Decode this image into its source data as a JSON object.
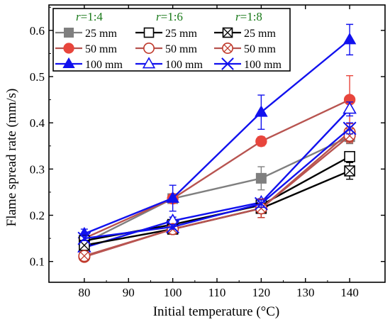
{
  "chart_data": {
    "type": "line",
    "title": "",
    "xlabel": "Initial temperature (°C)",
    "ylabel": "Flame spread rate (mm/s)",
    "xlim": [
      72,
      148
    ],
    "ylim": [
      0.055,
      0.655
    ],
    "xticks": [
      80,
      90,
      100,
      110,
      120,
      130,
      140
    ],
    "yticks": [
      0.1,
      0.2,
      0.3,
      0.4,
      0.5,
      0.6
    ],
    "grid": false,
    "legend_position": "top-left",
    "legend_groups": [
      {
        "header_prefix": "r",
        "header_value": "=1:4",
        "color": "#1a7a1a"
      },
      {
        "header_prefix": "r",
        "header_value": "=1:6",
        "color": "#1a7a1a"
      },
      {
        "header_prefix": "r",
        "header_value": "=1:8",
        "color": "#1a7a1a"
      }
    ],
    "x": [
      80,
      100,
      120,
      140
    ],
    "series": [
      {
        "name": "25 mm",
        "group": 0,
        "marker": "square-filled",
        "color": "#7f7f7f",
        "values": [
          0.14,
          0.236,
          0.28,
          0.37
        ],
        "errors": [
          0.01,
          0.01,
          0.025,
          0.015
        ]
      },
      {
        "name": "50 mm",
        "group": 0,
        "marker": "circle-filled",
        "color": "#e8453c",
        "line_color": "#b85450",
        "values": [
          0.15,
          0.236,
          0.36,
          0.45
        ],
        "errors": [
          0.01,
          0.01,
          0.01,
          0.052
        ]
      },
      {
        "name": "100 mm",
        "group": 0,
        "marker": "triangle-filled",
        "color": "#1111ee",
        "values": [
          0.16,
          0.237,
          0.423,
          0.58
        ],
        "errors": [
          0.01,
          0.028,
          0.037,
          0.033
        ]
      },
      {
        "name": "25 mm",
        "group": 1,
        "marker": "square-open",
        "color": "#000000",
        "values": [
          0.145,
          0.18,
          0.222,
          0.327
        ],
        "errors": [
          0.005,
          0.005,
          0.008,
          0.01
        ]
      },
      {
        "name": "50 mm",
        "group": 1,
        "marker": "circle-open",
        "color": "#c0392b",
        "line_color": "#b85450",
        "values": [
          0.11,
          0.17,
          0.215,
          0.38
        ],
        "errors": [
          0.005,
          0.008,
          0.02,
          0.02
        ]
      },
      {
        "name": "100 mm",
        "group": 1,
        "marker": "triangle-open",
        "color": "#1111ee",
        "values": [
          0.13,
          0.188,
          0.228,
          0.43
        ],
        "errors": [
          0.005,
          0.008,
          0.008,
          0.015
        ]
      },
      {
        "name": "25 mm",
        "group": 2,
        "marker": "square-x",
        "color": "#000000",
        "values": [
          0.135,
          0.17,
          0.215,
          0.296
        ],
        "errors": [
          0.005,
          0.005,
          0.008,
          0.018
        ]
      },
      {
        "name": "50 mm",
        "group": 2,
        "marker": "circle-x",
        "color": "#c0392b",
        "line_color": "#b85450",
        "values": [
          0.112,
          0.17,
          0.215,
          0.372
        ],
        "errors": [
          0.005,
          0.005,
          0.02,
          0.015
        ]
      },
      {
        "name": "100 mm",
        "group": 2,
        "marker": "cross-x",
        "color": "#1111ee",
        "values": [
          0.15,
          0.175,
          0.225,
          0.388
        ],
        "errors": [
          0.005,
          0.005,
          0.008,
          0.012
        ]
      }
    ]
  }
}
